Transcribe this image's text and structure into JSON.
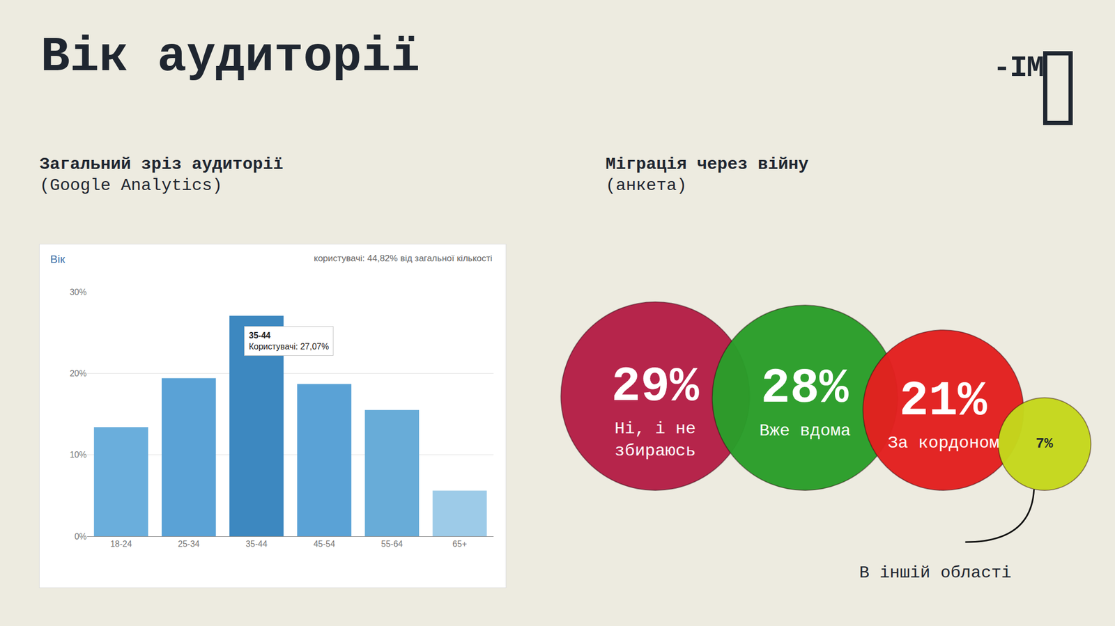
{
  "page": {
    "title": "Вік аудиторії",
    "logo": "-ІМ"
  },
  "chart_data": [
    {
      "type": "bar",
      "heading": "Загальний зріз аудиторії",
      "subheading": "(Google Analytics)",
      "title": "Вік",
      "subtitle": "користувачі: 44,82% від загальної кількості",
      "categories": [
        "18-24",
        "25-34",
        "35-44",
        "45-54",
        "55-64",
        "65+"
      ],
      "values": [
        13.4,
        19.4,
        27.07,
        18.7,
        15.5,
        5.6
      ],
      "colors": [
        "#6aaedc",
        "#5aa2d6",
        "#3d88c0",
        "#5aa2d6",
        "#68acd8",
        "#9dcbe8"
      ],
      "ylim": [
        0,
        30
      ],
      "yticks": [
        {
          "value": 0,
          "label": "0%"
        },
        {
          "value": 10,
          "label": "10%"
        },
        {
          "value": 20,
          "label": "20%"
        },
        {
          "value": 30,
          "label": "30%"
        }
      ],
      "grid": true,
      "annotations": [
        {
          "category": "35-44",
          "value": 27.07,
          "lines": [
            "35-44",
            "Користувачі: 27,07%"
          ]
        }
      ]
    },
    {
      "type": "bubble",
      "heading": "Міграція через війну",
      "subheading": "(анкета)",
      "categories": [
        "Ні, і не збираюсь",
        "Вже вдома",
        "За кордоном",
        "В іншій області"
      ],
      "values": [
        29,
        28,
        21,
        7
      ],
      "value_labels": [
        "29%",
        "28%",
        "21%",
        "7%"
      ],
      "colors": [
        "#b51f47",
        "#2a9e2a",
        "#e3201f",
        "#c5d81c"
      ],
      "data_labels": true,
      "tick_labels": false
    }
  ]
}
